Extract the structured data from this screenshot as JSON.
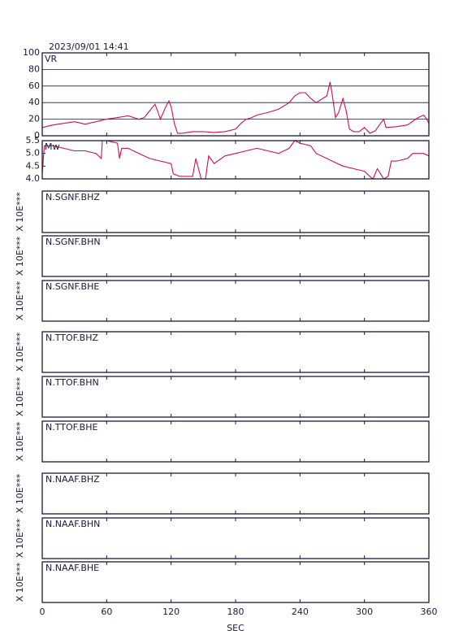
{
  "chart_data": [
    {
      "type": "line",
      "title": "2023/09/01 14:41",
      "label": "VR",
      "color": "#d0104c",
      "x": [
        0,
        10,
        20,
        30,
        40,
        50,
        60,
        70,
        80,
        90,
        95,
        100,
        105,
        108,
        110,
        115,
        118,
        120,
        123,
        126,
        130,
        140,
        150,
        160,
        170,
        180,
        185,
        190,
        195,
        200,
        210,
        220,
        230,
        235,
        240,
        245,
        250,
        255,
        260,
        265,
        268,
        270,
        273,
        276,
        280,
        283,
        286,
        290,
        295,
        300,
        305,
        310,
        315,
        318,
        320,
        330,
        340,
        350,
        355,
        358,
        360
      ],
      "values": [
        10,
        13,
        15,
        17,
        14,
        17,
        20,
        22,
        24,
        20,
        22,
        30,
        38,
        28,
        20,
        35,
        42,
        35,
        15,
        3,
        3,
        5,
        5,
        4,
        5,
        8,
        15,
        20,
        22,
        25,
        28,
        32,
        40,
        48,
        52,
        52,
        45,
        40,
        44,
        48,
        65,
        50,
        22,
        28,
        45,
        30,
        8,
        5,
        5,
        10,
        3,
        6,
        15,
        20,
        10,
        11,
        13,
        22,
        25,
        20,
        15
      ],
      "xlim": [
        0,
        360
      ],
      "xticks": [
        0,
        60,
        120,
        180,
        240,
        300,
        360
      ],
      "ylim": [
        0,
        100
      ],
      "yticks": [
        0,
        20,
        40,
        60,
        80,
        100
      ],
      "grid": true
    },
    {
      "type": "line",
      "label": "Mw",
      "color": "#d0104c",
      "x": [
        0,
        2,
        10,
        20,
        30,
        40,
        50,
        55,
        56,
        60,
        70,
        72,
        74,
        80,
        90,
        100,
        110,
        120,
        122,
        128,
        135,
        140,
        143,
        148,
        152,
        155,
        160,
        170,
        180,
        190,
        200,
        210,
        220,
        230,
        235,
        240,
        250,
        255,
        265,
        270,
        280,
        290,
        300,
        305,
        308,
        312,
        318,
        322,
        325,
        330,
        340,
        345,
        355,
        360
      ],
      "values": [
        4.2,
        5.3,
        5.3,
        5.2,
        5.1,
        5.1,
        5.0,
        4.8,
        5.5,
        5.5,
        5.4,
        4.8,
        5.2,
        5.2,
        5.0,
        4.8,
        4.7,
        4.6,
        4.2,
        4.1,
        4.1,
        4.1,
        4.8,
        4.0,
        4.0,
        4.9,
        4.6,
        4.9,
        5.0,
        5.1,
        5.2,
        5.1,
        5.0,
        5.2,
        5.5,
        5.4,
        5.3,
        5.0,
        4.8,
        4.7,
        4.5,
        4.4,
        4.3,
        4.1,
        4.0,
        4.4,
        4.0,
        4.1,
        4.7,
        4.7,
        4.8,
        5.0,
        5.0,
        4.9
      ],
      "xlim": [
        0,
        360
      ],
      "xticks": [
        0,
        60,
        120,
        180,
        240,
        300,
        360
      ],
      "ylim": [
        4,
        5.5
      ],
      "yticks": [
        {
          "value": 4,
          "label": "4.0"
        },
        4.5,
        {
          "value": 5,
          "label": "5.0"
        },
        5.5
      ]
    },
    {
      "type": "waveform",
      "panels": [
        {
          "label": "N.SGNF.BHZ",
          "ylabel": "X 10E***"
        },
        {
          "label": "N.SGNF.BHN",
          "ylabel": "X 10E***"
        },
        {
          "label": "N.SGNF.BHE",
          "ylabel": "X 10E***"
        },
        {
          "label": "N.TTOF.BHZ",
          "ylabel": "X 10E***"
        },
        {
          "label": "N.TTOF.BHN",
          "ylabel": "X 10E***"
        },
        {
          "label": "N.TTOF.BHE",
          "ylabel": "X 10E***"
        },
        {
          "label": "N.NAAF.BHZ",
          "ylabel": "X 10E***"
        },
        {
          "label": "N.NAAF.BHN",
          "ylabel": "X 10E***"
        },
        {
          "label": "N.NAAF.BHE",
          "ylabel": "X 10E***"
        }
      ],
      "xlim": [
        0,
        360
      ],
      "xticks": [
        0,
        60,
        120,
        180,
        240,
        300,
        360
      ],
      "xlabel": "SEC"
    }
  ]
}
